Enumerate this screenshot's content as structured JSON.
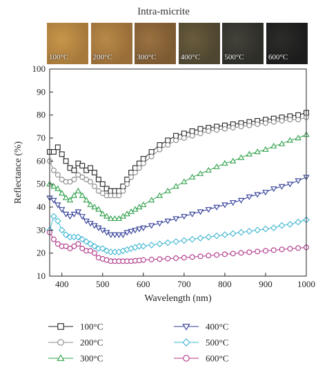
{
  "figure": {
    "title": "Intra-micrite"
  },
  "swatches": [
    {
      "label": "100°C",
      "color": "#a77a3c",
      "color2": "#c8964a"
    },
    {
      "label": "200°C",
      "color": "#9a6e38",
      "color2": "#b88a48"
    },
    {
      "label": "300°C",
      "color": "#7d5a32",
      "color2": "#9a7240"
    },
    {
      "label": "400°C",
      "color": "#4e4630",
      "color2": "#6a5c3c"
    },
    {
      "label": "500°C",
      "color": "#2e2e28",
      "color2": "#44423a"
    },
    {
      "label": "600°C",
      "color": "#1c1c1c",
      "color2": "#2c2c2a"
    }
  ],
  "chart_data": {
    "type": "line",
    "title": "",
    "xlabel": "Wavelength (nm)",
    "ylabel": "Reflectance (%)",
    "xlim": [
      370,
      1000
    ],
    "ylim": [
      10,
      100
    ],
    "xticks": [
      400,
      500,
      600,
      700,
      800,
      900,
      1000
    ],
    "yticks": [
      10,
      20,
      30,
      40,
      50,
      60,
      70,
      80,
      90,
      100
    ],
    "grid": false,
    "legend": "bottom",
    "series": [
      {
        "name": "100°C",
        "marker": "square",
        "color": "#222222",
        "points": [
          [
            370,
            64
          ],
          [
            380,
            64
          ],
          [
            390,
            66
          ],
          [
            400,
            63
          ],
          [
            410,
            60
          ],
          [
            420,
            57
          ],
          [
            430,
            56
          ],
          [
            440,
            59
          ],
          [
            450,
            58
          ],
          [
            460,
            56
          ],
          [
            470,
            57
          ],
          [
            480,
            55
          ],
          [
            490,
            52
          ],
          [
            500,
            50
          ],
          [
            510,
            48
          ],
          [
            520,
            47
          ],
          [
            530,
            47
          ],
          [
            540,
            47
          ],
          [
            550,
            49
          ],
          [
            560,
            52
          ],
          [
            570,
            55
          ],
          [
            580,
            57
          ],
          [
            590,
            59
          ],
          [
            600,
            61
          ],
          [
            620,
            64
          ],
          [
            640,
            67
          ],
          [
            660,
            69
          ],
          [
            680,
            71
          ],
          [
            700,
            72
          ],
          [
            720,
            73
          ],
          [
            740,
            74
          ],
          [
            760,
            74.5
          ],
          [
            780,
            75
          ],
          [
            800,
            75.5
          ],
          [
            820,
            76
          ],
          [
            840,
            76.5
          ],
          [
            860,
            77
          ],
          [
            880,
            77.5
          ],
          [
            900,
            78
          ],
          [
            920,
            78.5
          ],
          [
            940,
            79
          ],
          [
            960,
            79.5
          ],
          [
            980,
            80
          ],
          [
            1000,
            81
          ]
        ]
      },
      {
        "name": "200°C",
        "marker": "circle",
        "color": "#888888",
        "points": [
          [
            370,
            60
          ],
          [
            380,
            56
          ],
          [
            390,
            54
          ],
          [
            400,
            52
          ],
          [
            410,
            51
          ],
          [
            420,
            51
          ],
          [
            430,
            52
          ],
          [
            440,
            54
          ],
          [
            450,
            53
          ],
          [
            460,
            52
          ],
          [
            470,
            51
          ],
          [
            480,
            49
          ],
          [
            490,
            47
          ],
          [
            500,
            46
          ],
          [
            510,
            45
          ],
          [
            520,
            45
          ],
          [
            530,
            45
          ],
          [
            540,
            45
          ],
          [
            550,
            47
          ],
          [
            560,
            50
          ],
          [
            570,
            53
          ],
          [
            580,
            55
          ],
          [
            590,
            57
          ],
          [
            600,
            59
          ],
          [
            620,
            62
          ],
          [
            640,
            65
          ],
          [
            660,
            67
          ],
          [
            680,
            69
          ],
          [
            700,
            70
          ],
          [
            720,
            71
          ],
          [
            740,
            72
          ],
          [
            760,
            73
          ],
          [
            780,
            73.5
          ],
          [
            800,
            74
          ],
          [
            820,
            74.5
          ],
          [
            840,
            75
          ],
          [
            860,
            75.5
          ],
          [
            880,
            76
          ],
          [
            900,
            76.5
          ],
          [
            920,
            77
          ],
          [
            940,
            77.5
          ],
          [
            960,
            78
          ],
          [
            980,
            78
          ],
          [
            1000,
            79
          ]
        ]
      },
      {
        "name": "300°C",
        "marker": "triangle-up",
        "color": "#2ea04a",
        "points": [
          [
            370,
            50
          ],
          [
            380,
            49
          ],
          [
            390,
            48
          ],
          [
            400,
            46
          ],
          [
            410,
            44
          ],
          [
            420,
            43
          ],
          [
            430,
            45
          ],
          [
            440,
            47
          ],
          [
            450,
            45
          ],
          [
            460,
            43
          ],
          [
            470,
            41
          ],
          [
            480,
            40
          ],
          [
            490,
            39
          ],
          [
            500,
            37
          ],
          [
            510,
            36
          ],
          [
            520,
            35
          ],
          [
            530,
            35
          ],
          [
            540,
            35
          ],
          [
            550,
            36
          ],
          [
            560,
            37
          ],
          [
            570,
            38
          ],
          [
            580,
            39
          ],
          [
            590,
            40
          ],
          [
            600,
            41
          ],
          [
            620,
            43
          ],
          [
            640,
            45
          ],
          [
            660,
            47
          ],
          [
            680,
            49
          ],
          [
            700,
            51
          ],
          [
            720,
            53
          ],
          [
            740,
            54.5
          ],
          [
            760,
            56
          ],
          [
            780,
            57.5
          ],
          [
            800,
            59
          ],
          [
            820,
            60
          ],
          [
            840,
            61.5
          ],
          [
            860,
            63
          ],
          [
            880,
            64
          ],
          [
            900,
            65
          ],
          [
            920,
            66.5
          ],
          [
            940,
            67.5
          ],
          [
            960,
            69
          ],
          [
            980,
            70
          ],
          [
            1000,
            71.5
          ]
        ]
      },
      {
        "name": "400°C",
        "marker": "triangle-down",
        "color": "#2f3b96",
        "points": [
          [
            370,
            44
          ],
          [
            380,
            43
          ],
          [
            390,
            41
          ],
          [
            400,
            39
          ],
          [
            410,
            37
          ],
          [
            420,
            36
          ],
          [
            430,
            37
          ],
          [
            440,
            38
          ],
          [
            450,
            36
          ],
          [
            460,
            34
          ],
          [
            470,
            33
          ],
          [
            480,
            32
          ],
          [
            490,
            31
          ],
          [
            500,
            30
          ],
          [
            510,
            29
          ],
          [
            520,
            28
          ],
          [
            530,
            28
          ],
          [
            540,
            28
          ],
          [
            550,
            28
          ],
          [
            560,
            29
          ],
          [
            570,
            29.5
          ],
          [
            580,
            30
          ],
          [
            590,
            30.5
          ],
          [
            600,
            31
          ],
          [
            620,
            32
          ],
          [
            640,
            33
          ],
          [
            660,
            34
          ],
          [
            680,
            35
          ],
          [
            700,
            36
          ],
          [
            720,
            37
          ],
          [
            740,
            38
          ],
          [
            760,
            39
          ],
          [
            780,
            40
          ],
          [
            800,
            41
          ],
          [
            820,
            42
          ],
          [
            840,
            43
          ],
          [
            860,
            44.5
          ],
          [
            880,
            45.5
          ],
          [
            900,
            46.5
          ],
          [
            920,
            48
          ],
          [
            940,
            49
          ],
          [
            960,
            50
          ],
          [
            980,
            51.5
          ],
          [
            1000,
            53
          ]
        ]
      },
      {
        "name": "500°C",
        "marker": "diamond",
        "color": "#3fb6d2",
        "points": [
          [
            370,
            30
          ],
          [
            380,
            36
          ],
          [
            390,
            34
          ],
          [
            400,
            30
          ],
          [
            410,
            28
          ],
          [
            420,
            27
          ],
          [
            430,
            27
          ],
          [
            440,
            27
          ],
          [
            450,
            26
          ],
          [
            460,
            25
          ],
          [
            470,
            24
          ],
          [
            480,
            23
          ],
          [
            490,
            22
          ],
          [
            500,
            22
          ],
          [
            510,
            21
          ],
          [
            520,
            20.5
          ],
          [
            530,
            20.5
          ],
          [
            540,
            20.5
          ],
          [
            550,
            21
          ],
          [
            560,
            21.5
          ],
          [
            570,
            22
          ],
          [
            580,
            22.5
          ],
          [
            590,
            23
          ],
          [
            600,
            23
          ],
          [
            620,
            23.5
          ],
          [
            640,
            24
          ],
          [
            660,
            24.5
          ],
          [
            680,
            25
          ],
          [
            700,
            25.5
          ],
          [
            720,
            26
          ],
          [
            740,
            26.5
          ],
          [
            760,
            27
          ],
          [
            780,
            27.5
          ],
          [
            800,
            28
          ],
          [
            820,
            28.5
          ],
          [
            840,
            29
          ],
          [
            860,
            29.5
          ],
          [
            880,
            30
          ],
          [
            900,
            30.5
          ],
          [
            920,
            31
          ],
          [
            940,
            32
          ],
          [
            960,
            32.5
          ],
          [
            980,
            33.5
          ],
          [
            1000,
            34.5
          ]
        ]
      },
      {
        "name": "600°C",
        "marker": "circle",
        "color": "#b0368a",
        "points": [
          [
            370,
            29
          ],
          [
            380,
            26
          ],
          [
            390,
            24
          ],
          [
            400,
            23
          ],
          [
            410,
            23
          ],
          [
            420,
            22
          ],
          [
            430,
            23
          ],
          [
            440,
            24
          ],
          [
            450,
            22
          ],
          [
            460,
            21
          ],
          [
            470,
            21
          ],
          [
            480,
            20
          ],
          [
            490,
            18
          ],
          [
            500,
            17.5
          ],
          [
            510,
            17
          ],
          [
            520,
            16.5
          ],
          [
            530,
            16.5
          ],
          [
            540,
            16.5
          ],
          [
            550,
            16.5
          ],
          [
            560,
            16.5
          ],
          [
            570,
            16.5
          ],
          [
            580,
            16.7
          ],
          [
            590,
            16.8
          ],
          [
            600,
            17
          ],
          [
            620,
            17.2
          ],
          [
            640,
            17.4
          ],
          [
            660,
            17.6
          ],
          [
            680,
            17.8
          ],
          [
            700,
            18
          ],
          [
            720,
            18.3
          ],
          [
            740,
            18.6
          ],
          [
            760,
            18.9
          ],
          [
            780,
            19.2
          ],
          [
            800,
            19.5
          ],
          [
            820,
            19.8
          ],
          [
            840,
            20.1
          ],
          [
            860,
            20.4
          ],
          [
            880,
            20.7
          ],
          [
            900,
            21
          ],
          [
            920,
            21.3
          ],
          [
            940,
            21.6
          ],
          [
            960,
            21.9
          ],
          [
            980,
            22.2
          ],
          [
            1000,
            22.5
          ]
        ]
      }
    ]
  }
}
